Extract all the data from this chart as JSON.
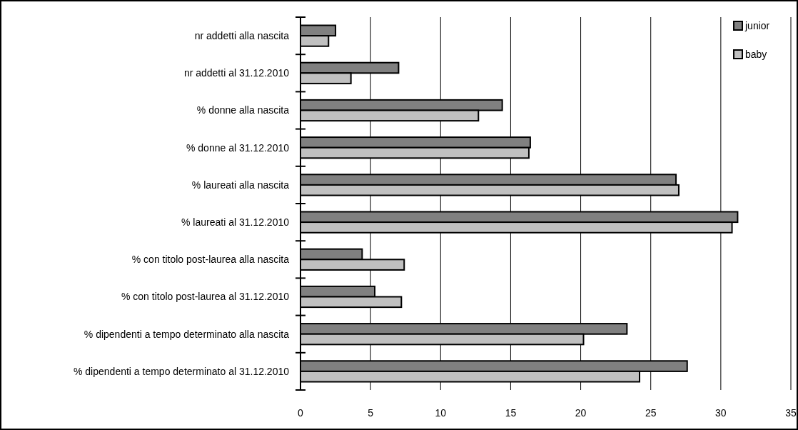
{
  "chart_data": {
    "type": "bar",
    "orientation": "horizontal",
    "categories": [
      "nr addetti alla nascita",
      "nr addetti al 31.12.2010",
      "% donne alla nascita",
      "% donne al 31.12.2010",
      "% laureati alla nascita",
      "% laureati al 31.12.2010",
      "% con titolo post-laurea alla nascita",
      "% con titolo post-laurea al 31.12.2010",
      "% dipendenti a tempo determinato alla nascita",
      "% dipendenti a tempo determinato al 31.12.2010"
    ],
    "series": [
      {
        "name": "junior",
        "color": "#808080",
        "values": [
          2.5,
          7.0,
          14.4,
          16.4,
          26.8,
          31.2,
          4.4,
          5.3,
          23.3,
          27.6
        ]
      },
      {
        "name": "baby",
        "color": "#c0c0c0",
        "values": [
          2.0,
          3.6,
          12.7,
          16.3,
          27.0,
          30.8,
          7.4,
          7.2,
          20.2,
          24.2
        ]
      }
    ],
    "xlim": [
      0,
      35
    ],
    "xticks": [
      0,
      5,
      10,
      15,
      20,
      25,
      30,
      35
    ],
    "grid": "x",
    "legend": "top right"
  }
}
